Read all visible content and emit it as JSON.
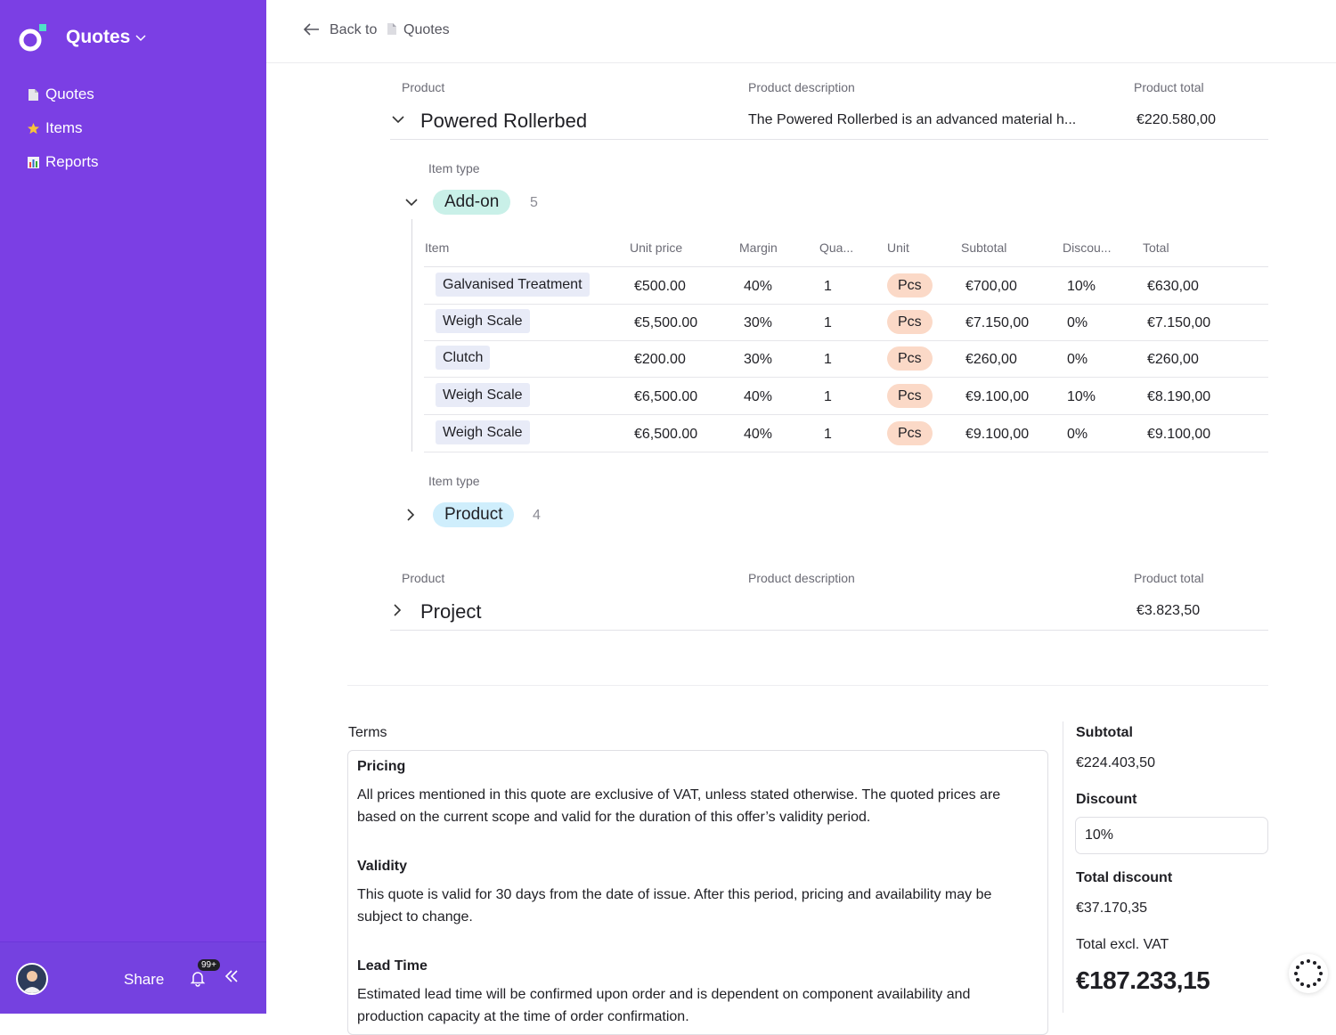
{
  "app": {
    "title": "Quotes"
  },
  "sidebar": {
    "items": [
      {
        "label": "Quotes",
        "icon": "document-icon"
      },
      {
        "label": "Items",
        "icon": "star-icon"
      },
      {
        "label": "Reports",
        "icon": "bar-chart-icon"
      }
    ],
    "footer": {
      "share_label": "Share",
      "notification_count": "99+"
    }
  },
  "header": {
    "back_label": "Back to",
    "back_target": "Quotes"
  },
  "columns": {
    "product": "Product",
    "description": "Product description",
    "total": "Product total",
    "item_type": "Item type"
  },
  "products": [
    {
      "name": "Powered Rollerbed",
      "description": "The Powered Rollerbed is an advanced material h...",
      "total": "€220.580,00"
    },
    {
      "name": "Project",
      "description": "",
      "total": "€3.823,50"
    }
  ],
  "item_groups": [
    {
      "type": "Add-on",
      "count": "5"
    },
    {
      "type": "Product",
      "count": "4"
    }
  ],
  "table": {
    "headers": [
      "Item",
      "Unit price",
      "Margin",
      "Qua...",
      "Unit",
      "Subtotal",
      "Discou...",
      "Total"
    ],
    "rows": [
      {
        "item": "Galvanised Treatment",
        "unit_price": "€500.00",
        "margin": "40%",
        "qty": "1",
        "unit": "Pcs",
        "subtotal": "€700,00",
        "discount": "10%",
        "total": "€630,00"
      },
      {
        "item": "Weigh Scale",
        "unit_price": "€5,500.00",
        "margin": "30%",
        "qty": "1",
        "unit": "Pcs",
        "subtotal": "€7.150,00",
        "discount": "0%",
        "total": "€7.150,00"
      },
      {
        "item": "Clutch",
        "unit_price": "€200.00",
        "margin": "30%",
        "qty": "1",
        "unit": "Pcs",
        "subtotal": "€260,00",
        "discount": "0%",
        "total": "€260,00"
      },
      {
        "item": "Weigh Scale",
        "unit_price": "€6,500.00",
        "margin": "40%",
        "qty": "1",
        "unit": "Pcs",
        "subtotal": "€9.100,00",
        "discount": "10%",
        "total": "€8.190,00"
      },
      {
        "item": "Weigh Scale",
        "unit_price": "€6,500.00",
        "margin": "40%",
        "qty": "1",
        "unit": "Pcs",
        "subtotal": "€9.100,00",
        "discount": "0%",
        "total": "€9.100,00"
      }
    ]
  },
  "terms": {
    "label": "Terms",
    "sections": [
      {
        "heading": "Pricing",
        "body": "All prices mentioned in this quote are exclusive of VAT, unless stated otherwise. The quoted prices are based on the current scope and valid for the duration of this offer’s validity period."
      },
      {
        "heading": "Validity",
        "body": "This quote is valid for 30 days from the date of issue. After this period, pricing and availability may be subject to change."
      },
      {
        "heading": "Lead Time",
        "body": "Estimated lead time will be confirmed upon order and is dependent on component availability and production capacity at the time of order confirmation."
      }
    ]
  },
  "summary": {
    "subtotal_label": "Subtotal",
    "subtotal": "€224.403,50",
    "discount_label": "Discount",
    "discount_value": "10%",
    "total_discount_label": "Total discount",
    "total_discount": "€37.170,35",
    "total_excl_label": "Total excl. VAT",
    "total_excl": "€187.233,15"
  },
  "colors": {
    "sidebar": "#7b3fe4",
    "addon_badge": "#c9f0e8",
    "product_badge": "#cfeefc",
    "unit_pill": "#fbd9c7"
  }
}
